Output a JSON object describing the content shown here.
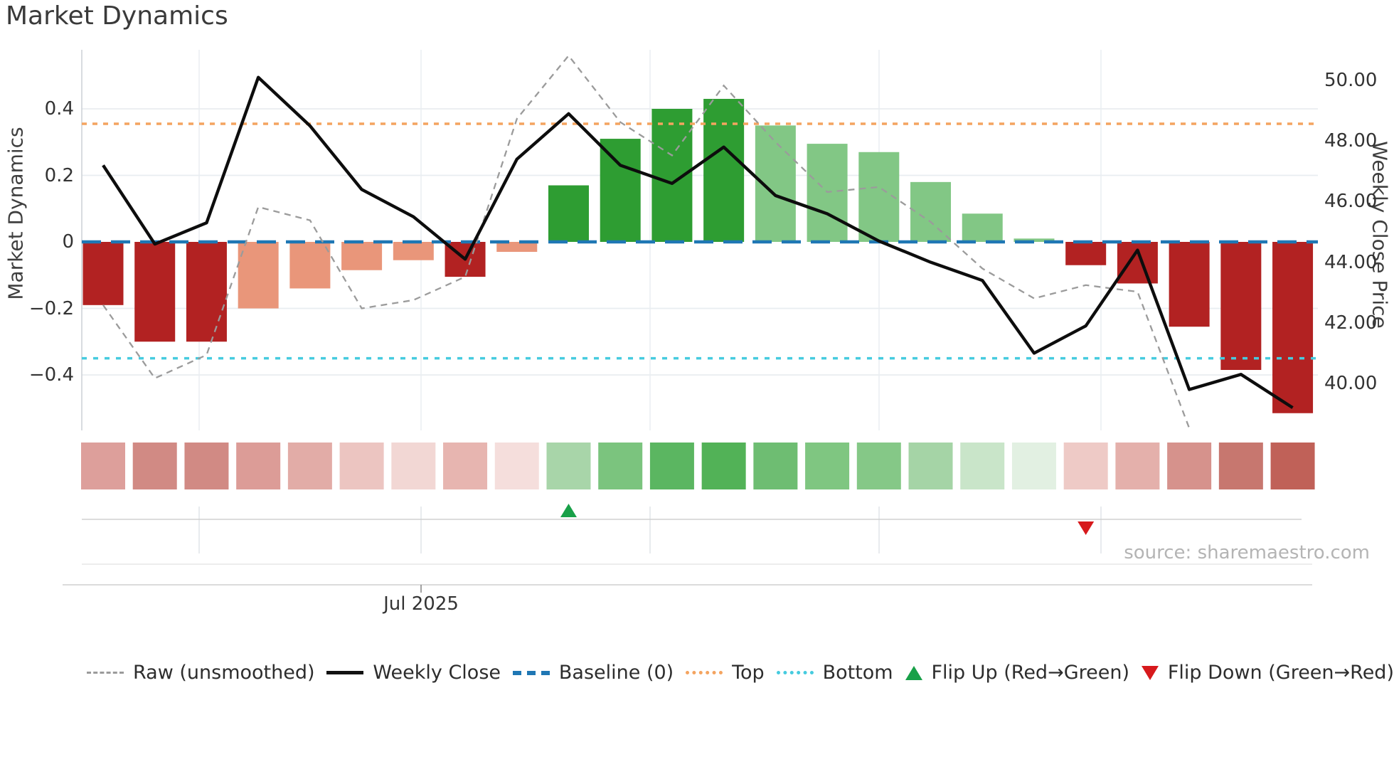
{
  "title": "Market Dynamics",
  "y_left": {
    "title": "Market Dynamics",
    "tick_labels": [
      "0.4",
      "0.2",
      "0",
      "−0.2",
      "−0.4"
    ],
    "tick_values": [
      0.4,
      0.2,
      0,
      -0.2,
      -0.4
    ]
  },
  "y_right": {
    "title": "Weekly Close Price",
    "tick_labels": [
      "50.00",
      "48.00",
      "46.00",
      "44.00",
      "42.00",
      "40.00"
    ],
    "tick_values": [
      50,
      48,
      46,
      44,
      42,
      40
    ]
  },
  "x_axis": {
    "tick_label": "Jul 2025"
  },
  "source_note": "source: sharemaestro.com",
  "legend": {
    "items": [
      {
        "id": "raw",
        "label": "Raw (unsmoothed)"
      },
      {
        "id": "weekly",
        "label": "Weekly Close"
      },
      {
        "id": "baseline",
        "label": "Baseline (0)"
      },
      {
        "id": "top",
        "label": "Top"
      },
      {
        "id": "bottom",
        "label": "Bottom"
      },
      {
        "id": "flip-up",
        "label": "Flip Up (Red→Green)"
      },
      {
        "id": "flip-down",
        "label": "Flip Down (Green→Red)"
      }
    ]
  },
  "colors": {
    "bar_dark_red": "#b22222",
    "bar_salmon": "#e9967a",
    "bar_dark_green": "#2e9d32",
    "bar_light_green": "#82c785",
    "baseline_blue": "#1f77b4",
    "top_orange": "#f4a460",
    "bottom_cyan": "#46cbdf",
    "raw_gray": "#9b9b9b",
    "weekly_black": "#0d0d0d",
    "flip_up_green": "#18a048",
    "flip_down_red": "#d7191c"
  },
  "chart_data": {
    "type": "combo",
    "n_weeks": 24,
    "title": "Market Dynamics",
    "ylabel_left": "Market Dynamics",
    "ylabel_right": "Weekly Close Price",
    "x_month_tick_label": "Jul 2025",
    "left_axis_range": [
      -0.57,
      0.58
    ],
    "right_axis_range": [
      38.4,
      51.0
    ],
    "grid": true,
    "legend_position": "bottom",
    "series": [
      {
        "name": "Market Dynamics (bars)",
        "type": "bar",
        "axis": "left",
        "values": [
          -0.19,
          -0.3,
          -0.3,
          -0.2,
          -0.14,
          -0.085,
          -0.055,
          -0.105,
          -0.03,
          0.17,
          0.31,
          0.4,
          0.43,
          0.35,
          0.295,
          0.27,
          0.18,
          0.085,
          0.01,
          -0.07,
          -0.125,
          -0.255,
          -0.385,
          -0.515
        ],
        "colors": [
          "#b22222",
          "#b22222",
          "#b22222",
          "#e9967a",
          "#e9967a",
          "#e9967a",
          "#e9967a",
          "#b22222",
          "#e9967a",
          "#2e9d32",
          "#2e9d32",
          "#2e9d32",
          "#2e9d32",
          "#82c785",
          "#82c785",
          "#82c785",
          "#82c785",
          "#82c785",
          "#82c785",
          "#b22222",
          "#b22222",
          "#b22222",
          "#b22222",
          "#b22222"
        ]
      },
      {
        "name": "Raw (unsmoothed)",
        "type": "line",
        "style": "dashed",
        "axis": "left",
        "values": [
          -0.19,
          -0.41,
          -0.34,
          0.105,
          0.065,
          -0.2,
          -0.175,
          -0.105,
          0.37,
          0.56,
          0.36,
          0.26,
          0.47,
          0.3,
          0.15,
          0.165,
          0.06,
          -0.08,
          -0.17,
          -0.13,
          -0.15,
          -0.56,
          null,
          null
        ]
      },
      {
        "name": "Weekly Close",
        "type": "line",
        "style": "solid",
        "axis": "right",
        "values": [
          47.2,
          44.6,
          45.3,
          50.1,
          48.5,
          46.4,
          45.5,
          44.1,
          47.4,
          48.9,
          47.2,
          46.6,
          47.8,
          46.2,
          45.6,
          44.7,
          44.0,
          43.4,
          41.0,
          41.9,
          44.4,
          39.8,
          40.3,
          39.2
        ]
      }
    ],
    "reference_lines": {
      "baseline": 0,
      "top": 0.355,
      "bottom": -0.35
    },
    "flip_markers": [
      {
        "type": "up",
        "week_index": 9
      },
      {
        "type": "down",
        "week_index": 19
      }
    ],
    "heatmap_row": {
      "colors": [
        "#dd9f9b",
        "#d18a84",
        "#d18a84",
        "#dc9c97",
        "#e2aca7",
        "#ecc5c1",
        "#f2d7d4",
        "#e7b5b0",
        "#f5dedc",
        "#a8d5a9",
        "#7bc47e",
        "#5bb661",
        "#52b257",
        "#6ebd72",
        "#7fc681",
        "#85c887",
        "#a5d4a6",
        "#c9e5c9",
        "#e2f0e2",
        "#eecac6",
        "#e4b0ab",
        "#d6928c",
        "#c7776f",
        "#c06158"
      ]
    }
  }
}
